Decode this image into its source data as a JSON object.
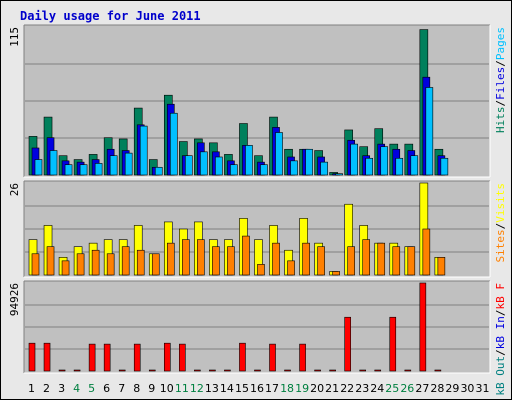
{
  "title": "Daily usage for June 2011",
  "colors": {
    "background": "#e8e8e8",
    "plot_bg": "#c0c0c0",
    "hits": "#00805c",
    "files": "#0000e0",
    "pages": "#00c0ff",
    "visits": "#ffff00",
    "sites": "#ff8000",
    "kb_in": "#0000e0",
    "kb_out": "#008080",
    "kb_f": "#ff0000",
    "weekend": "#008040"
  },
  "chart_data": [
    {
      "type": "bar",
      "panel": "top",
      "ymax_label": "115",
      "ylim": [
        0,
        115
      ],
      "right_labels": [
        "Pages",
        "/",
        "Files",
        "/",
        "Hits"
      ],
      "categories": [
        "1",
        "2",
        "3",
        "4",
        "5",
        "6",
        "7",
        "8",
        "9",
        "10",
        "11",
        "12",
        "13",
        "14",
        "15",
        "16",
        "17",
        "18",
        "19",
        "20",
        "21",
        "22",
        "23",
        "24",
        "25",
        "26",
        "27",
        "28",
        "29",
        "30",
        "31"
      ],
      "series": [
        {
          "name": "Hits",
          "values": [
            30,
            45,
            15,
            12,
            16,
            29,
            28,
            52,
            12,
            62,
            26,
            28,
            25,
            16,
            40,
            15,
            45,
            20,
            20,
            19,
            2,
            35,
            22,
            36,
            24,
            24,
            113,
            20,
            0,
            0,
            0
          ]
        },
        {
          "name": "Files",
          "values": [
            21,
            29,
            11,
            10,
            12,
            20,
            19,
            39,
            6,
            55,
            15,
            25,
            18,
            11,
            23,
            10,
            37,
            14,
            20,
            14,
            1,
            27,
            15,
            24,
            20,
            19,
            76,
            15,
            0,
            0,
            0
          ]
        },
        {
          "name": "Pages",
          "values": [
            12,
            19,
            8,
            8,
            9,
            15,
            17,
            38,
            6,
            48,
            15,
            18,
            14,
            8,
            23,
            8,
            33,
            11,
            20,
            10,
            1,
            24,
            13,
            22,
            13,
            15,
            68,
            13,
            0,
            0,
            0
          ]
        }
      ]
    },
    {
      "type": "bar",
      "panel": "middle",
      "ymax_label": "26",
      "ylim": [
        0,
        26
      ],
      "right_labels": [
        "Visits",
        "/",
        "Sites"
      ],
      "categories": [
        "1",
        "2",
        "3",
        "4",
        "5",
        "6",
        "7",
        "8",
        "9",
        "10",
        "11",
        "12",
        "13",
        "14",
        "15",
        "16",
        "17",
        "18",
        "19",
        "20",
        "21",
        "22",
        "23",
        "24",
        "25",
        "26",
        "27",
        "28",
        "29",
        "30",
        "31"
      ],
      "series": [
        {
          "name": "Visits",
          "values": [
            10,
            14,
            5,
            8,
            9,
            10,
            10,
            14,
            6,
            15,
            13,
            15,
            10,
            10,
            16,
            10,
            14,
            7,
            16,
            9,
            1,
            20,
            14,
            9,
            9,
            8,
            26,
            5,
            0,
            0,
            0
          ]
        },
        {
          "name": "Sites",
          "values": [
            6,
            8,
            4,
            6,
            7,
            6,
            8,
            7,
            6,
            9,
            10,
            10,
            8,
            8,
            11,
            3,
            9,
            4,
            9,
            8,
            1,
            8,
            10,
            9,
            8,
            8,
            13,
            5,
            0,
            0,
            0
          ]
        }
      ]
    },
    {
      "type": "bar",
      "panel": "bottom",
      "ymax_label": "94926",
      "ylim": [
        0,
        94926
      ],
      "right_labels": [
        "kB F",
        "/",
        "kB In",
        "/",
        "kB Out"
      ],
      "categories": [
        "1",
        "2",
        "3",
        "4",
        "5",
        "6",
        "7",
        "8",
        "9",
        "10",
        "11",
        "12",
        "13",
        "14",
        "15",
        "16",
        "17",
        "18",
        "19",
        "20",
        "21",
        "22",
        "23",
        "24",
        "25",
        "26",
        "27",
        "28",
        "29",
        "30",
        "31"
      ],
      "series": [
        {
          "name": "kB F",
          "values": [
            30000,
            30000,
            1000,
            1000,
            29000,
            29000,
            1000,
            29000,
            1000,
            30000,
            29000,
            1000,
            1000,
            1000,
            30000,
            1000,
            29000,
            1000,
            29000,
            1000,
            1000,
            58000,
            1000,
            1000,
            58000,
            1000,
            94926,
            1000,
            0,
            0,
            0
          ]
        }
      ]
    }
  ],
  "days": [
    "1",
    "2",
    "3",
    "4",
    "5",
    "6",
    "7",
    "8",
    "9",
    "10",
    "11",
    "12",
    "13",
    "14",
    "15",
    "16",
    "17",
    "18",
    "19",
    "20",
    "21",
    "22",
    "23",
    "24",
    "25",
    "26",
    "27",
    "28",
    "29",
    "30",
    "31"
  ],
  "weekend_days": [
    "4",
    "5",
    "11",
    "12",
    "18",
    "19",
    "25",
    "26"
  ]
}
